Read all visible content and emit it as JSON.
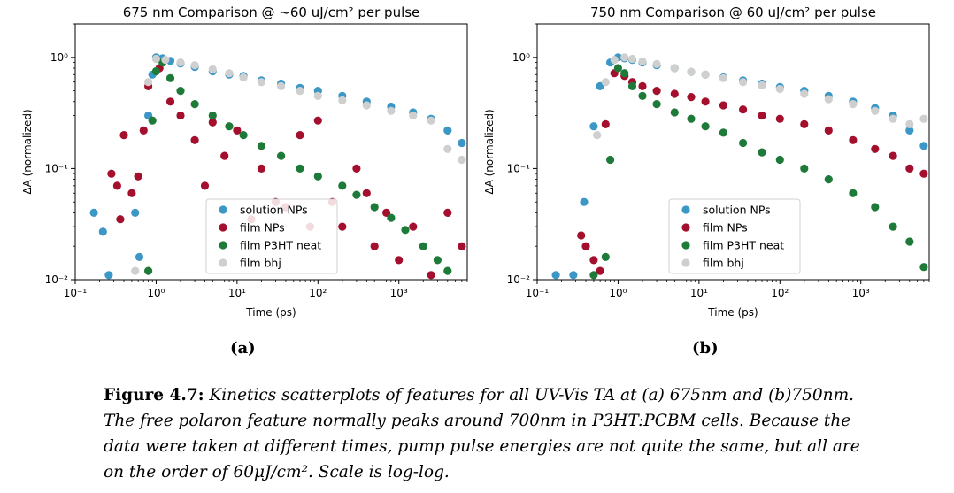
{
  "colors": {
    "solution_nps": "#3b97c6",
    "film_nps": "#a30f2c",
    "film_p3ht_neat": "#1e7a38",
    "film_bhj": "#cfcfcf"
  },
  "sublabels": {
    "a": "(a)",
    "b": "(b)"
  },
  "caption": {
    "label": "Figure 4.7:",
    "text": " Kinetics scatterplots of features for all UV-Vis TA at (a) 675nm and (b)750nm. The free polaron feature normally peaks around 700nm in P3HT:PCBM cells. Because the data were taken at different times, pump pulse energies are not quite the same, but all are on the order of 60μJ/cm². Scale is log-log."
  },
  "chart_data": [
    {
      "type": "scatter",
      "title": "675 nm Comparison @ ~60 uJ/cm² per pulse",
      "xlabel": "Time (ps)",
      "ylabel": "ΔA (normalized)",
      "xscale": "log",
      "yscale": "log",
      "xlim": [
        0.1,
        7000
      ],
      "ylim": [
        0.01,
        2
      ],
      "xticks": [
        "10⁻¹",
        "10⁰",
        "10¹",
        "10²",
        "10³"
      ],
      "yticks": [
        "10⁻²",
        "10⁻¹",
        "10⁰"
      ],
      "legend_position": "lower-center",
      "series": [
        {
          "name": "solution NPs",
          "color_key": "solution_nps",
          "points": [
            [
              0.17,
              0.04
            ],
            [
              0.22,
              0.027
            ],
            [
              0.26,
              0.011
            ],
            [
              0.55,
              0.04
            ],
            [
              0.62,
              0.016
            ],
            [
              0.8,
              0.3
            ],
            [
              0.9,
              0.7
            ],
            [
              1.0,
              1.0
            ],
            [
              1.2,
              0.98
            ],
            [
              1.5,
              0.93
            ],
            [
              2,
              0.88
            ],
            [
              3,
              0.82
            ],
            [
              5,
              0.75
            ],
            [
              8,
              0.7
            ],
            [
              12,
              0.68
            ],
            [
              20,
              0.62
            ],
            [
              35,
              0.58
            ],
            [
              60,
              0.53
            ],
            [
              100,
              0.5
            ],
            [
              200,
              0.45
            ],
            [
              400,
              0.4
            ],
            [
              800,
              0.36
            ],
            [
              1500,
              0.32
            ],
            [
              2500,
              0.28
            ],
            [
              4000,
              0.22
            ],
            [
              6000,
              0.17
            ]
          ]
        },
        {
          "name": "film NPs",
          "color_key": "film_nps",
          "points": [
            [
              0.28,
              0.09
            ],
            [
              0.33,
              0.07
            ],
            [
              0.36,
              0.035
            ],
            [
              0.4,
              0.2
            ],
            [
              0.5,
              0.06
            ],
            [
              0.6,
              0.085
            ],
            [
              0.7,
              0.22
            ],
            [
              0.8,
              0.55
            ],
            [
              1.1,
              0.8
            ],
            [
              1.5,
              0.4
            ],
            [
              2,
              0.3
            ],
            [
              3,
              0.18
            ],
            [
              4,
              0.07
            ],
            [
              5,
              0.26
            ],
            [
              7,
              0.13
            ],
            [
              10,
              0.22
            ],
            [
              15,
              0.035
            ],
            [
              20,
              0.1
            ],
            [
              30,
              0.05
            ],
            [
              40,
              0.045
            ],
            [
              60,
              0.2
            ],
            [
              80,
              0.03
            ],
            [
              100,
              0.27
            ],
            [
              150,
              0.05
            ],
            [
              200,
              0.03
            ],
            [
              300,
              0.1
            ],
            [
              400,
              0.06
            ],
            [
              500,
              0.02
            ],
            [
              700,
              0.04
            ],
            [
              1000,
              0.015
            ],
            [
              1500,
              0.03
            ],
            [
              2500,
              0.011
            ],
            [
              4000,
              0.04
            ],
            [
              6000,
              0.02
            ]
          ]
        },
        {
          "name": "film P3HT neat",
          "color_key": "film_p3ht_neat",
          "points": [
            [
              0.8,
              0.012
            ],
            [
              0.9,
              0.27
            ],
            [
              1.0,
              0.75
            ],
            [
              1.2,
              0.9
            ],
            [
              1.5,
              0.65
            ],
            [
              2,
              0.5
            ],
            [
              3,
              0.38
            ],
            [
              5,
              0.3
            ],
            [
              8,
              0.24
            ],
            [
              12,
              0.2
            ],
            [
              20,
              0.16
            ],
            [
              35,
              0.13
            ],
            [
              60,
              0.1
            ],
            [
              100,
              0.085
            ],
            [
              200,
              0.07
            ],
            [
              300,
              0.058
            ],
            [
              500,
              0.045
            ],
            [
              800,
              0.036
            ],
            [
              1200,
              0.028
            ],
            [
              2000,
              0.02
            ],
            [
              3000,
              0.015
            ],
            [
              4000,
              0.012
            ]
          ]
        },
        {
          "name": "film bhj",
          "color_key": "film_bhj",
          "points": [
            [
              0.55,
              0.012
            ],
            [
              0.8,
              0.6
            ],
            [
              1.0,
              0.97
            ],
            [
              1.3,
              0.95
            ],
            [
              2,
              0.9
            ],
            [
              3,
              0.85
            ],
            [
              5,
              0.78
            ],
            [
              8,
              0.72
            ],
            [
              12,
              0.66
            ],
            [
              20,
              0.6
            ],
            [
              35,
              0.55
            ],
            [
              60,
              0.5
            ],
            [
              100,
              0.45
            ],
            [
              200,
              0.41
            ],
            [
              400,
              0.37
            ],
            [
              800,
              0.33
            ],
            [
              1500,
              0.3
            ],
            [
              2500,
              0.27
            ],
            [
              4000,
              0.15
            ],
            [
              6000,
              0.12
            ]
          ]
        }
      ]
    },
    {
      "type": "scatter",
      "title": "750 nm Comparison @ 60 uJ/cm² per pulse",
      "xlabel": "Time (ps)",
      "ylabel": "ΔA (normalized)",
      "xscale": "log",
      "yscale": "log",
      "xlim": [
        0.1,
        7000
      ],
      "ylim": [
        0.01,
        2
      ],
      "xticks": [
        "10⁻¹",
        "10⁰",
        "10¹",
        "10²",
        "10³"
      ],
      "yticks": [
        "10⁻²",
        "10⁻¹",
        "10⁰"
      ],
      "legend_position": "lower-center",
      "series": [
        {
          "name": "solution NPs",
          "color_key": "solution_nps",
          "points": [
            [
              0.17,
              0.011
            ],
            [
              0.28,
              0.011
            ],
            [
              0.38,
              0.05
            ],
            [
              0.5,
              0.24
            ],
            [
              0.6,
              0.55
            ],
            [
              0.8,
              0.9
            ],
            [
              1.0,
              1.0
            ],
            [
              1.2,
              0.98
            ],
            [
              1.5,
              0.95
            ],
            [
              2,
              0.9
            ],
            [
              3,
              0.85
            ],
            [
              5,
              0.8
            ],
            [
              8,
              0.74
            ],
            [
              12,
              0.7
            ],
            [
              20,
              0.66
            ],
            [
              35,
              0.62
            ],
            [
              60,
              0.58
            ],
            [
              100,
              0.54
            ],
            [
              200,
              0.5
            ],
            [
              400,
              0.45
            ],
            [
              800,
              0.4
            ],
            [
              1500,
              0.35
            ],
            [
              2500,
              0.3
            ],
            [
              4000,
              0.22
            ],
            [
              6000,
              0.16
            ]
          ]
        },
        {
          "name": "film NPs",
          "color_key": "film_nps",
          "points": [
            [
              0.35,
              0.025
            ],
            [
              0.4,
              0.02
            ],
            [
              0.5,
              0.015
            ],
            [
              0.6,
              0.012
            ],
            [
              0.7,
              0.25
            ],
            [
              0.9,
              0.72
            ],
            [
              1.2,
              0.68
            ],
            [
              1.5,
              0.6
            ],
            [
              2,
              0.55
            ],
            [
              3,
              0.5
            ],
            [
              5,
              0.47
            ],
            [
              8,
              0.44
            ],
            [
              12,
              0.4
            ],
            [
              20,
              0.37
            ],
            [
              35,
              0.34
            ],
            [
              60,
              0.3
            ],
            [
              100,
              0.28
            ],
            [
              200,
              0.25
            ],
            [
              400,
              0.22
            ],
            [
              800,
              0.18
            ],
            [
              1500,
              0.15
            ],
            [
              2500,
              0.13
            ],
            [
              4000,
              0.1
            ],
            [
              6000,
              0.09
            ]
          ]
        },
        {
          "name": "film P3HT neat",
          "color_key": "film_p3ht_neat",
          "points": [
            [
              0.5,
              0.011
            ],
            [
              0.7,
              0.016
            ],
            [
              0.8,
              0.12
            ],
            [
              1.0,
              0.8
            ],
            [
              1.2,
              0.72
            ],
            [
              1.5,
              0.55
            ],
            [
              2,
              0.45
            ],
            [
              3,
              0.38
            ],
            [
              5,
              0.32
            ],
            [
              8,
              0.28
            ],
            [
              12,
              0.24
            ],
            [
              20,
              0.21
            ],
            [
              35,
              0.17
            ],
            [
              60,
              0.14
            ],
            [
              100,
              0.12
            ],
            [
              200,
              0.1
            ],
            [
              400,
              0.08
            ],
            [
              800,
              0.06
            ],
            [
              1500,
              0.045
            ],
            [
              2500,
              0.03
            ],
            [
              4000,
              0.022
            ],
            [
              6000,
              0.013
            ]
          ]
        },
        {
          "name": "film bhj",
          "color_key": "film_bhj",
          "points": [
            [
              0.55,
              0.2
            ],
            [
              0.7,
              0.6
            ],
            [
              0.9,
              0.95
            ],
            [
              1.2,
              1.0
            ],
            [
              1.5,
              0.97
            ],
            [
              2,
              0.92
            ],
            [
              3,
              0.87
            ],
            [
              5,
              0.8
            ],
            [
              8,
              0.74
            ],
            [
              12,
              0.7
            ],
            [
              20,
              0.65
            ],
            [
              35,
              0.6
            ],
            [
              60,
              0.56
            ],
            [
              100,
              0.52
            ],
            [
              200,
              0.47
            ],
            [
              400,
              0.42
            ],
            [
              800,
              0.38
            ],
            [
              1500,
              0.33
            ],
            [
              2500,
              0.28
            ],
            [
              4000,
              0.25
            ],
            [
              6000,
              0.28
            ]
          ]
        }
      ]
    }
  ]
}
